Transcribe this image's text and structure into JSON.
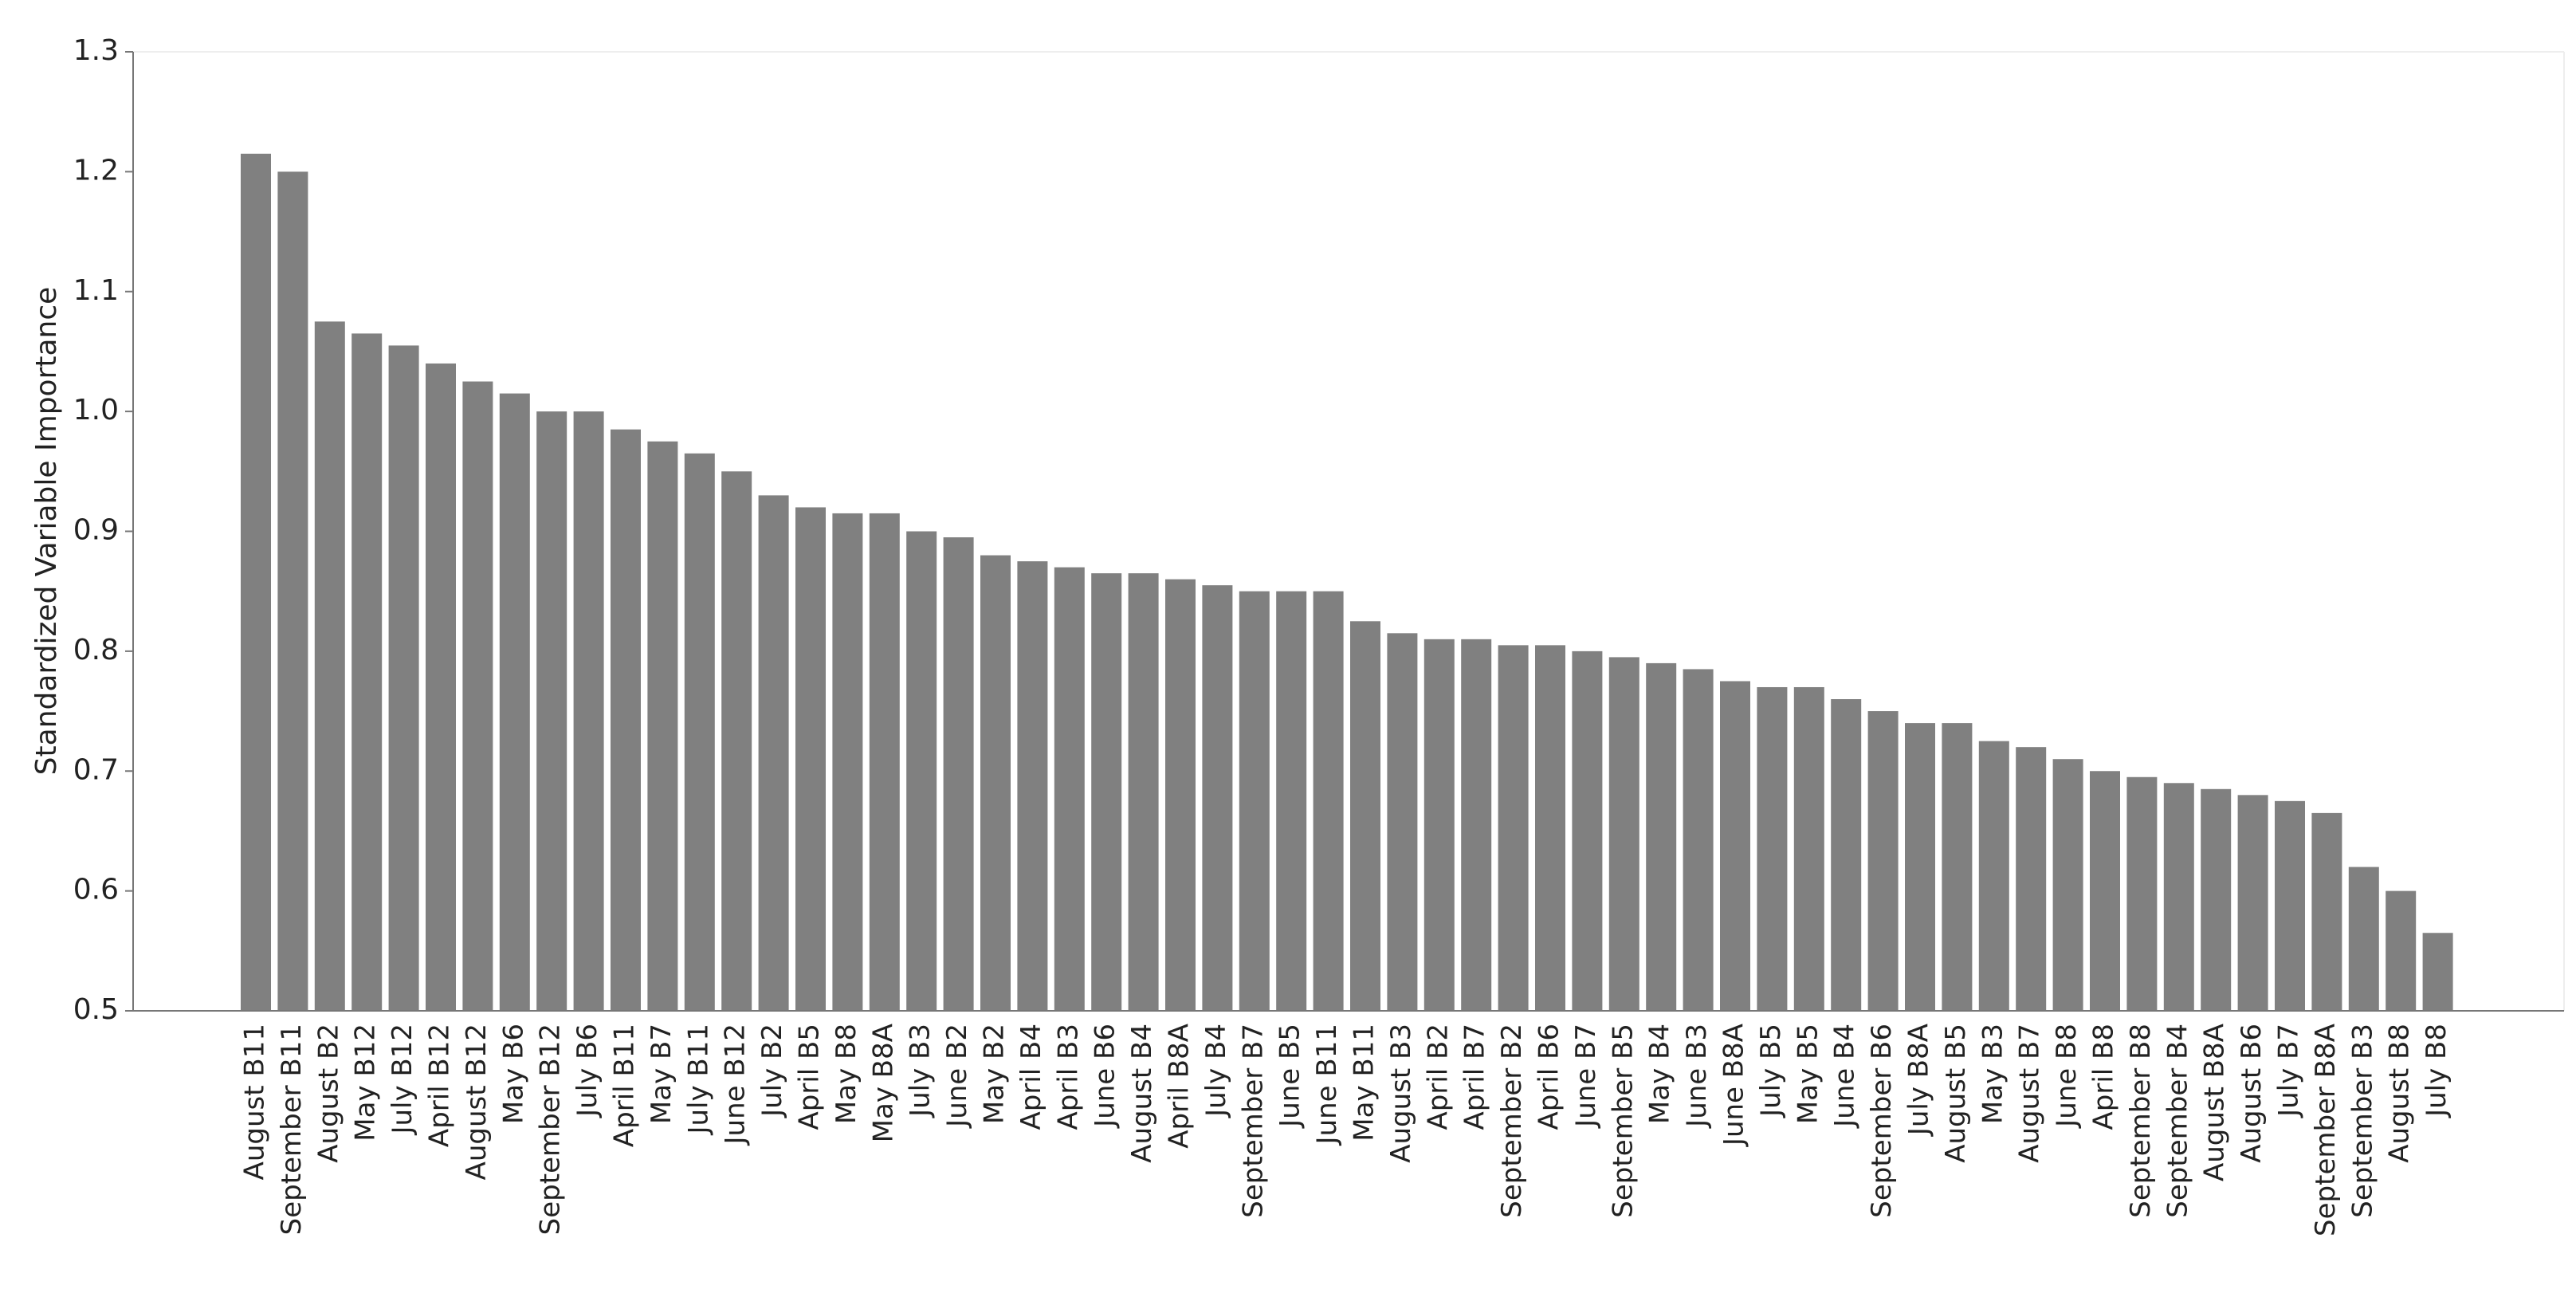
{
  "chart_data": {
    "type": "bar",
    "y_label": "Standardized Variable Importance",
    "categories": [
      "August B11",
      "September B11",
      "August B2",
      "May B12",
      "July B12",
      "April B12",
      "August B12",
      "May B6",
      "September B12",
      "July B6",
      "April B11",
      "May B7",
      "July B11",
      "June B12",
      "July B2",
      "April B5",
      "May B8",
      "May B8A",
      "July B3",
      "June B2",
      "May B2",
      "April B4",
      "April B3",
      "June B6",
      "August B4",
      "April B8A",
      "July B4",
      "September B7",
      "June B5",
      "June B11",
      "May B11",
      "August B3",
      "April B2",
      "April B7",
      "September B2",
      "April B6",
      "June B7",
      "September B5",
      "May B4",
      "June B3",
      "June B8A",
      "July B5",
      "May B5",
      "June B4",
      "September B6",
      "July B8A",
      "August B5",
      "May B3",
      "August B7",
      "June B8",
      "April B8",
      "September B8",
      "September B4",
      "August B8A",
      "August B6",
      "July B7",
      "September B8A",
      "September B3",
      "August B8",
      "July B8"
    ],
    "values": [
      1.215,
      1.2,
      1.075,
      1.065,
      1.055,
      1.04,
      1.025,
      1.015,
      1.0,
      1.0,
      0.985,
      0.975,
      0.965,
      0.95,
      0.93,
      0.92,
      0.915,
      0.915,
      0.9,
      0.895,
      0.88,
      0.875,
      0.87,
      0.865,
      0.865,
      0.86,
      0.855,
      0.85,
      0.85,
      0.85,
      0.825,
      0.815,
      0.81,
      0.81,
      0.805,
      0.805,
      0.8,
      0.795,
      0.79,
      0.785,
      0.775,
      0.77,
      0.77,
      0.76,
      0.75,
      0.74,
      0.74,
      0.725,
      0.72,
      0.71,
      0.7,
      0.695,
      0.69,
      0.685,
      0.68,
      0.675,
      0.665,
      0.62,
      0.6,
      0.565
    ],
    "color": "#808080",
    "ylim": [
      0.5,
      1.3
    ],
    "yticks": [
      0.5,
      0.6,
      0.7,
      0.8,
      0.9,
      {
        "value": 1.0,
        "label": "1.0"
      },
      1.1,
      1.2,
      1.3
    ],
    "grid": false
  }
}
